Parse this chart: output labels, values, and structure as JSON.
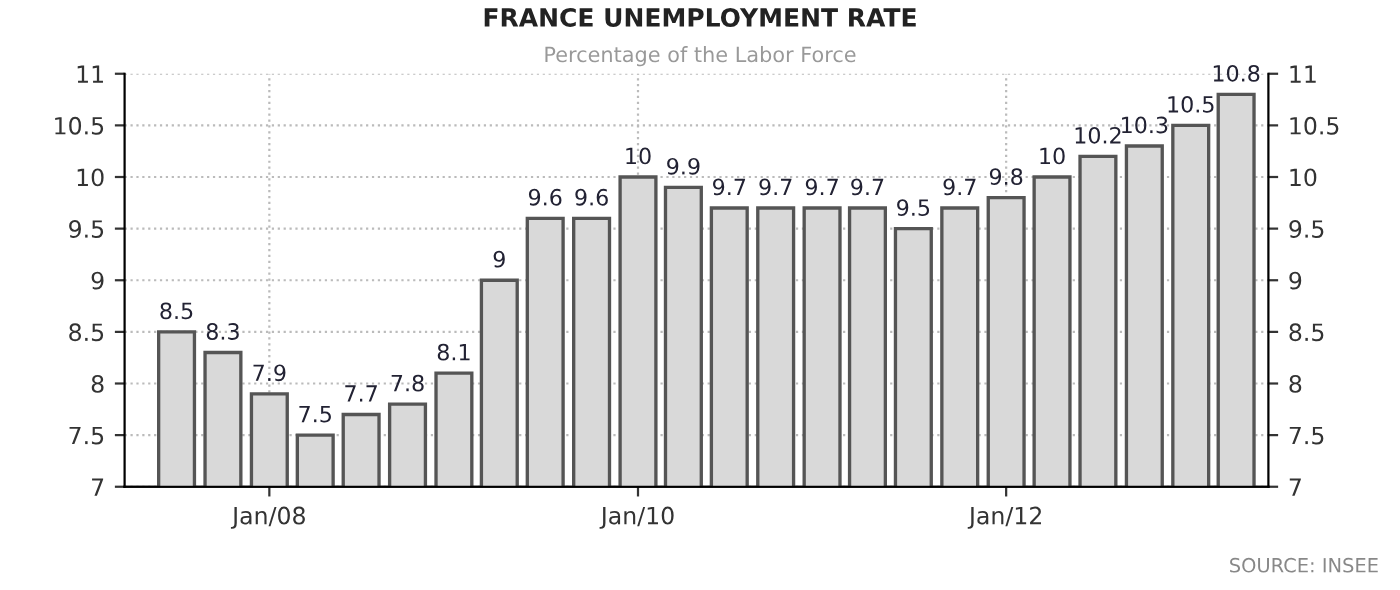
{
  "chart_data": {
    "type": "bar",
    "title": "FRANCE UNEMPLOYMENT RATE",
    "subtitle": "Percentage of the Labor Force",
    "x": [
      "2007-07-01",
      "2007-10-01",
      "2008-01-01",
      "2008-04-01",
      "2008-07-01",
      "2008-10-01",
      "2009-01-01",
      "2009-04-01",
      "2009-07-01",
      "2009-10-01",
      "2010-01-01",
      "2010-04-01",
      "2010-07-01",
      "2010-10-01",
      "2011-01-01",
      "2011-04-01",
      "2011-07-01",
      "2011-10-01",
      "2012-01-01",
      "2012-04-01",
      "2012-07-01",
      "2012-10-01",
      "2013-01-01",
      "2013-04-01"
    ],
    "values": [
      8.5,
      8.3,
      7.9,
      7.5,
      7.7,
      7.8,
      8.1,
      9,
      9.6,
      9.6,
      10,
      9.9,
      9.7,
      9.7,
      9.7,
      9.7,
      9.5,
      9.7,
      9.8,
      10,
      10.2,
      10.3,
      10.5,
      10.8
    ],
    "color": "#d9d9d9",
    "data_labels": true,
    "xlim": [
      "2007-03-20",
      "2013-06-04"
    ],
    "xticks": [
      {
        "value": "2008-01-01",
        "label": "Jan/08"
      },
      {
        "value": "2010-01-01",
        "label": "Jan/10"
      },
      {
        "value": "2012-01-01",
        "label": "Jan/12"
      }
    ],
    "ylim": [
      7,
      11
    ],
    "yticks": [
      7,
      7.5,
      8,
      8.5,
      9,
      9.5,
      10,
      10.5,
      11
    ],
    "y2lim": [
      7,
      11
    ],
    "y2ticks": [
      7,
      7.5,
      8,
      8.5,
      9,
      9.5,
      10,
      10.5,
      11
    ],
    "grid": true,
    "annotations": [
      "SOURCE: INSEE"
    ]
  }
}
